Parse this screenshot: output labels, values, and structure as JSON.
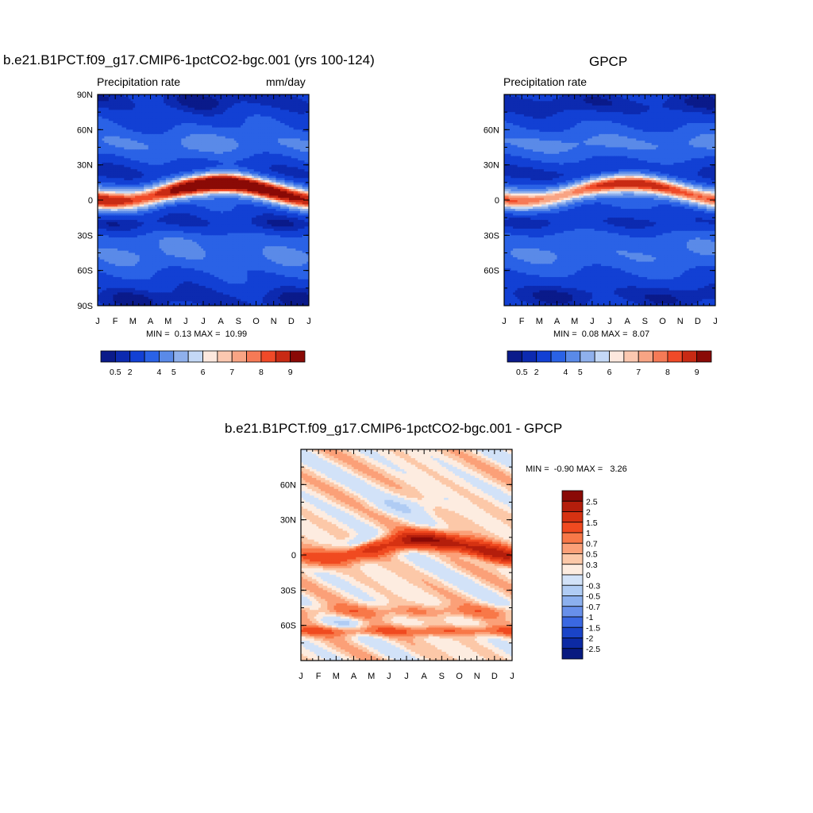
{
  "chart_data": [
    {
      "type": "heatmap",
      "title": "b.e21.B1PCT.f09_g17.CMIP6-1pctCO2-bgc.001 (yrs 100-124)",
      "left_label": "Precipitation rate",
      "right_label": "mm/day",
      "x_ticks": [
        "J",
        "F",
        "M",
        "A",
        "M",
        "J",
        "J",
        "A",
        "S",
        "O",
        "N",
        "D",
        "J"
      ],
      "y_ticks": [
        "90N",
        "60N",
        "30N",
        "0",
        "30S",
        "60S",
        "90S"
      ],
      "y_tick_values": [
        90,
        60,
        30,
        0,
        -30,
        -60,
        -90
      ],
      "ylim": [
        -90,
        90
      ],
      "stats_text": "MIN =  0.13 MAX =  10.99",
      "colorbar": {
        "colors": [
          "#0a1a8a",
          "#0c2ab0",
          "#1240d4",
          "#2a62e6",
          "#5a8ae8",
          "#8fb0ec",
          "#c4d8f6",
          "#fde8de",
          "#fbc8b0",
          "#f8a484",
          "#f67a56",
          "#f04a28",
          "#c82a14",
          "#8a0a06"
        ],
        "labels": [
          "0.5",
          "2",
          "4",
          "5",
          "6",
          "7",
          "8",
          "9"
        ],
        "label_positions": [
          1,
          2,
          4,
          5,
          7,
          9,
          11,
          13
        ]
      },
      "min": 0.13,
      "max": 10.99
    },
    {
      "type": "heatmap",
      "title": "GPCP",
      "left_label": "Precipitation rate",
      "x_ticks": [
        "J",
        "F",
        "M",
        "A",
        "M",
        "J",
        "J",
        "A",
        "S",
        "O",
        "N",
        "D",
        "J"
      ],
      "y_ticks": [
        "60N",
        "30N",
        "0",
        "30S",
        "60S"
      ],
      "y_tick_values": [
        60,
        30,
        0,
        -30,
        -60
      ],
      "ylim": [
        -90,
        90
      ],
      "stats_text": "MIN =  0.08 MAX =  8.07",
      "colorbar": {
        "colors": [
          "#0a1a8a",
          "#0c2ab0",
          "#1240d4",
          "#2a62e6",
          "#5a8ae8",
          "#8fb0ec",
          "#c4d8f6",
          "#fde8de",
          "#fbc8b0",
          "#f8a484",
          "#f67a56",
          "#f04a28",
          "#c82a14",
          "#8a0a06"
        ],
        "labels": [
          "0.5",
          "2",
          "4",
          "5",
          "6",
          "7",
          "8",
          "9"
        ],
        "label_positions": [
          1,
          2,
          4,
          5,
          7,
          9,
          11,
          13
        ]
      },
      "min": 0.08,
      "max": 8.07
    },
    {
      "type": "heatmap",
      "title": "b.e21.B1PCT.f09_g17.CMIP6-1pctCO2-bgc.001 - GPCP",
      "x_ticks": [
        "J",
        "F",
        "M",
        "A",
        "M",
        "J",
        "J",
        "A",
        "S",
        "O",
        "N",
        "D",
        "J"
      ],
      "y_ticks": [
        "60N",
        "30N",
        "0",
        "30S",
        "60S"
      ],
      "y_tick_values": [
        60,
        30,
        0,
        -30,
        -60
      ],
      "ylim": [
        -90,
        90
      ],
      "stats_text": "MIN =  -0.90 MAX =   3.26",
      "colorbar": {
        "colors": [
          "#8a0a06",
          "#b41e0c",
          "#d63212",
          "#f04a20",
          "#f87848",
          "#fba078",
          "#fcc8a8",
          "#fdece0",
          "#d2e2f8",
          "#b0ccf4",
          "#8cb0ee",
          "#6890ea",
          "#3a68e2",
          "#1a44c8",
          "#0c2aa4",
          "#081a80"
        ],
        "labels": [
          "2.5",
          "2",
          "1.5",
          "1",
          "0.7",
          "0.5",
          "0.3",
          "0",
          "-0.3",
          "-0.5",
          "-0.7",
          "-1",
          "-1.5",
          "-2",
          "-2.5"
        ]
      },
      "min": -0.9,
      "max": 3.26
    }
  ]
}
